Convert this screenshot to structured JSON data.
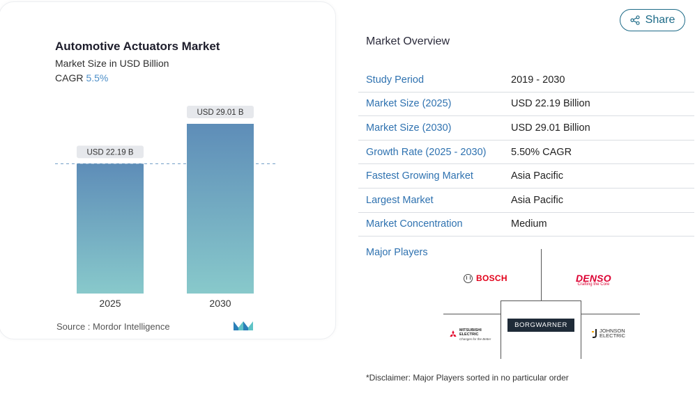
{
  "chart_data": {
    "type": "bar",
    "title": "Automotive Actuators Market",
    "subtitle": "Market Size in USD Billion",
    "cagr_label": "CAGR",
    "cagr_value": "5.5%",
    "categories": [
      "2025",
      "2030"
    ],
    "values": [
      22.19,
      29.01
    ],
    "data_labels": [
      "USD 22.19 B",
      "USD 29.01 B"
    ],
    "ylim": [
      0,
      29.01
    ],
    "reference_line_value": 22.19,
    "grid": false,
    "source_label": "Source :",
    "source_value": "Mordor Intelligence",
    "colors": {
      "bar_top": "#5e8db8",
      "bar_bottom": "#88c9cb",
      "label_bg": "#e6e8ec",
      "dashed_line": "#6c9bc4"
    }
  },
  "share": {
    "label": "Share",
    "icon": "share-icon"
  },
  "overview": {
    "title": "Market Overview",
    "rows": [
      {
        "label": "Study Period",
        "value": "2019 - 2030"
      },
      {
        "label": "Market Size (2025)",
        "value": "USD 22.19 Billion"
      },
      {
        "label": "Market Size (2030)",
        "value": "USD 29.01 Billion"
      },
      {
        "label": "Growth Rate (2025 - 2030)",
        "value": "5.50% CAGR"
      },
      {
        "label": "Fastest Growing Market",
        "value": "Asia Pacific"
      },
      {
        "label": "Largest Market",
        "value": "Asia Pacific"
      },
      {
        "label": "Market Concentration",
        "value": "Medium"
      }
    ]
  },
  "major_players": {
    "title": "Major Players",
    "logos": {
      "bosch": "BOSCH",
      "denso": "DENSO",
      "denso_tagline": "Crafting the Core",
      "borgwarner": "BORGWARNER",
      "mitsubishi_1": "MITSUBISHI",
      "mitsubishi_2": "ELECTRIC",
      "mitsubishi_tagline": "Changes for the Better",
      "johnson_1": "JOHNSON",
      "johnson_2": "ELECTRIC"
    }
  },
  "disclaimer": "*Disclaimer: Major Players sorted in no particular order"
}
